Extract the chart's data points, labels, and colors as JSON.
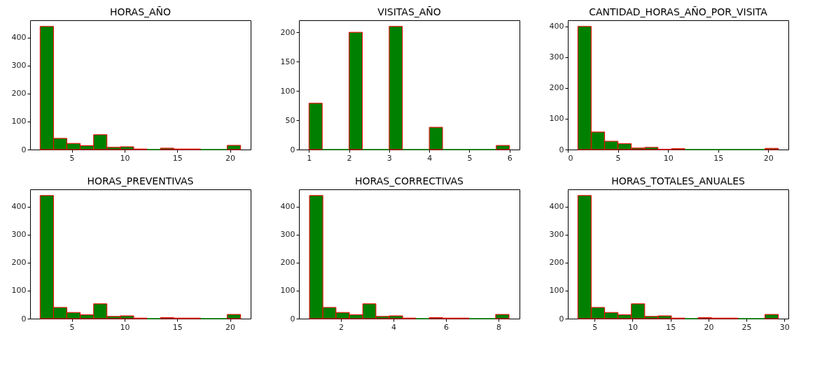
{
  "chart_data": [
    {
      "type": "histogram",
      "title": "HORAS_AÑO",
      "color": "#008000",
      "bins": [
        2,
        3.27,
        4.53,
        5.8,
        7.07,
        8.33,
        9.6,
        10.87,
        12.13,
        13.4,
        14.67,
        15.93,
        17.2,
        18.47,
        19.73,
        21
      ],
      "values": [
        440,
        40,
        22,
        14,
        53,
        8,
        10,
        2,
        0,
        5,
        2,
        2,
        0,
        0,
        15
      ],
      "xlim": [
        1.05,
        21.95
      ],
      "ylim": [
        0,
        462
      ],
      "xticks": [
        5,
        10,
        15,
        20
      ],
      "yticks": [
        0,
        100,
        200,
        300,
        400
      ],
      "grid": false
    },
    {
      "type": "histogram",
      "title": "VISITAS_AÑO",
      "color": "#008000",
      "bins": [
        1,
        1.33,
        2,
        2.33,
        3,
        3.33,
        4,
        4.33,
        5.67,
        6
      ],
      "values": [
        79,
        0,
        200,
        0,
        210,
        0,
        38,
        0,
        7
      ],
      "xlim": [
        0.75,
        6.25
      ],
      "ylim": [
        0,
        220.5
      ],
      "xticks": [
        1,
        2,
        3,
        4,
        5,
        6
      ],
      "yticks": [
        0,
        50,
        100,
        150,
        200
      ],
      "grid": false
    },
    {
      "type": "histogram",
      "title": "CANTIDAD_HORAS_AÑO_POR_VISITA",
      "color": "#008000",
      "bins": [
        1,
        2.33,
        3.67,
        5,
        6.33,
        7.67,
        9,
        10.33,
        11.67,
        13,
        14.33,
        15.67,
        17,
        18.33,
        19.67,
        21
      ],
      "values": [
        400,
        57,
        27,
        19,
        5,
        7,
        1,
        3,
        0,
        0,
        0,
        0,
        0,
        0,
        4
      ],
      "xlim": [
        0,
        22
      ],
      "ylim": [
        0,
        420
      ],
      "xticks": [
        0,
        5,
        10,
        15,
        20
      ],
      "yticks": [
        0,
        100,
        200,
        300,
        400
      ],
      "grid": false
    },
    {
      "type": "histogram",
      "title": "HORAS_PREVENTIVAS",
      "color": "#008000",
      "bins": [
        2,
        3.27,
        4.53,
        5.8,
        7.07,
        8.33,
        9.6,
        10.87,
        12.13,
        13.4,
        14.67,
        15.93,
        17.2,
        18.47,
        19.73,
        21
      ],
      "values": [
        440,
        40,
        22,
        14,
        53,
        8,
        10,
        2,
        0,
        4,
        2,
        2,
        0,
        0,
        15
      ],
      "xlim": [
        1.05,
        21.95
      ],
      "ylim": [
        0,
        462
      ],
      "xticks": [
        5,
        10,
        15,
        20
      ],
      "yticks": [
        0,
        100,
        200,
        300,
        400
      ],
      "grid": false
    },
    {
      "type": "histogram",
      "title": "HORAS_CORRECTIVAS",
      "color": "#008000",
      "bins": [
        0.8,
        1.31,
        1.81,
        2.32,
        2.83,
        3.33,
        3.84,
        4.35,
        4.85,
        5.36,
        5.87,
        6.37,
        6.88,
        7.39,
        7.89,
        8.4
      ],
      "values": [
        440,
        40,
        22,
        14,
        53,
        8,
        10,
        2,
        0,
        4,
        2,
        2,
        0,
        0,
        15
      ],
      "xlim": [
        0.4,
        8.8
      ],
      "ylim": [
        0,
        462
      ],
      "xticks": [
        2,
        4,
        6,
        8
      ],
      "yticks": [
        0,
        100,
        200,
        300,
        400
      ],
      "grid": false
    },
    {
      "type": "histogram",
      "title": "HORAS_TOTALES_ANUALES",
      "color": "#008000",
      "bins": [
        2.8,
        4.56,
        6.32,
        8.08,
        9.84,
        11.6,
        13.36,
        15.12,
        16.88,
        18.64,
        20.4,
        22.16,
        23.92,
        25.68,
        27.44,
        29.2
      ],
      "values": [
        440,
        40,
        22,
        14,
        53,
        8,
        10,
        2,
        0,
        4,
        2,
        2,
        0,
        0,
        15
      ],
      "xlim": [
        1.48,
        30.52
      ],
      "ylim": [
        0,
        462
      ],
      "xticks": [
        5,
        10,
        15,
        20,
        25,
        30
      ],
      "yticks": [
        0,
        100,
        200,
        300,
        400
      ],
      "grid": false
    }
  ]
}
